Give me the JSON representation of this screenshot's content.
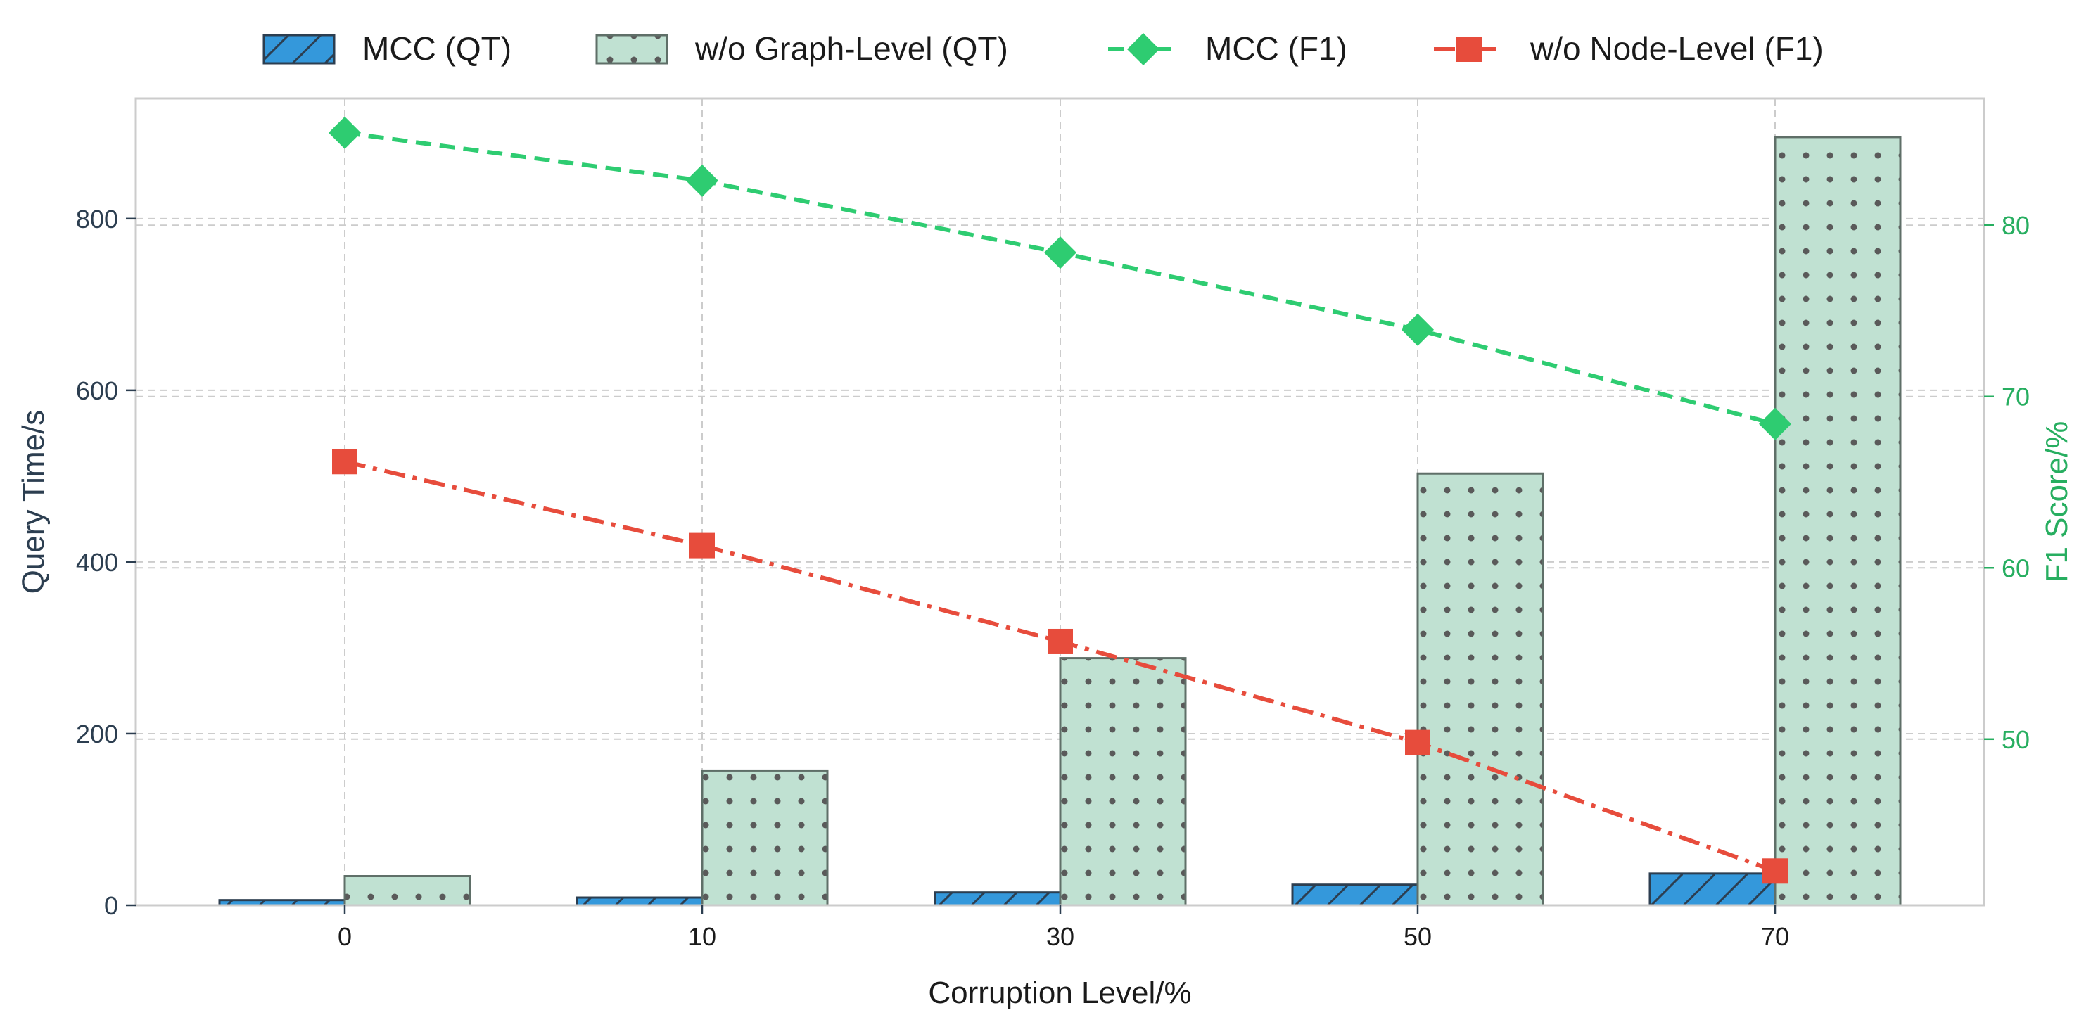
{
  "chart_data": {
    "type": "bar",
    "categories": [
      "0",
      "10",
      "30",
      "50",
      "70"
    ],
    "xlabel": "Corruption Level/%",
    "ylabel": "Query Time/s",
    "y2label": "F1 Score/%",
    "ylim": [
      0,
      940
    ],
    "y2lim": [
      40.3,
      87.4
    ],
    "yticks": [
      0,
      200,
      400,
      600,
      800
    ],
    "y2ticks": [
      50,
      60,
      70,
      80
    ],
    "grid": true,
    "legend_position": "top-center",
    "bar_series": [
      {
        "name": "MCC (QT)",
        "axis": "left",
        "color": "#3498db",
        "pattern": "hatch",
        "values": [
          6,
          9,
          15,
          24,
          37
        ]
      },
      {
        "name": "w/o Graph-Level (QT)",
        "axis": "left",
        "color": "#c0e1d2",
        "pattern": "dots",
        "values": [
          34,
          157,
          288,
          503,
          895
        ]
      }
    ],
    "line_series": [
      {
        "name": "MCC (F1)",
        "axis": "right",
        "color": "#2ecc71",
        "marker": "diamond",
        "linestyle": "dashed",
        "values": [
          85.4,
          82.6,
          78.4,
          73.9,
          68.4
        ]
      },
      {
        "name": "w/o Node-Level (F1)",
        "axis": "right",
        "color": "#e74c3c",
        "marker": "square",
        "linestyle": "dashdot",
        "values": [
          66.2,
          61.3,
          55.7,
          49.8,
          42.3
        ]
      }
    ],
    "colors": {
      "axis_left": "#2c3e50",
      "axis_right": "#27ae60",
      "grid": "#cccccc",
      "frame": "#cccccc"
    }
  }
}
